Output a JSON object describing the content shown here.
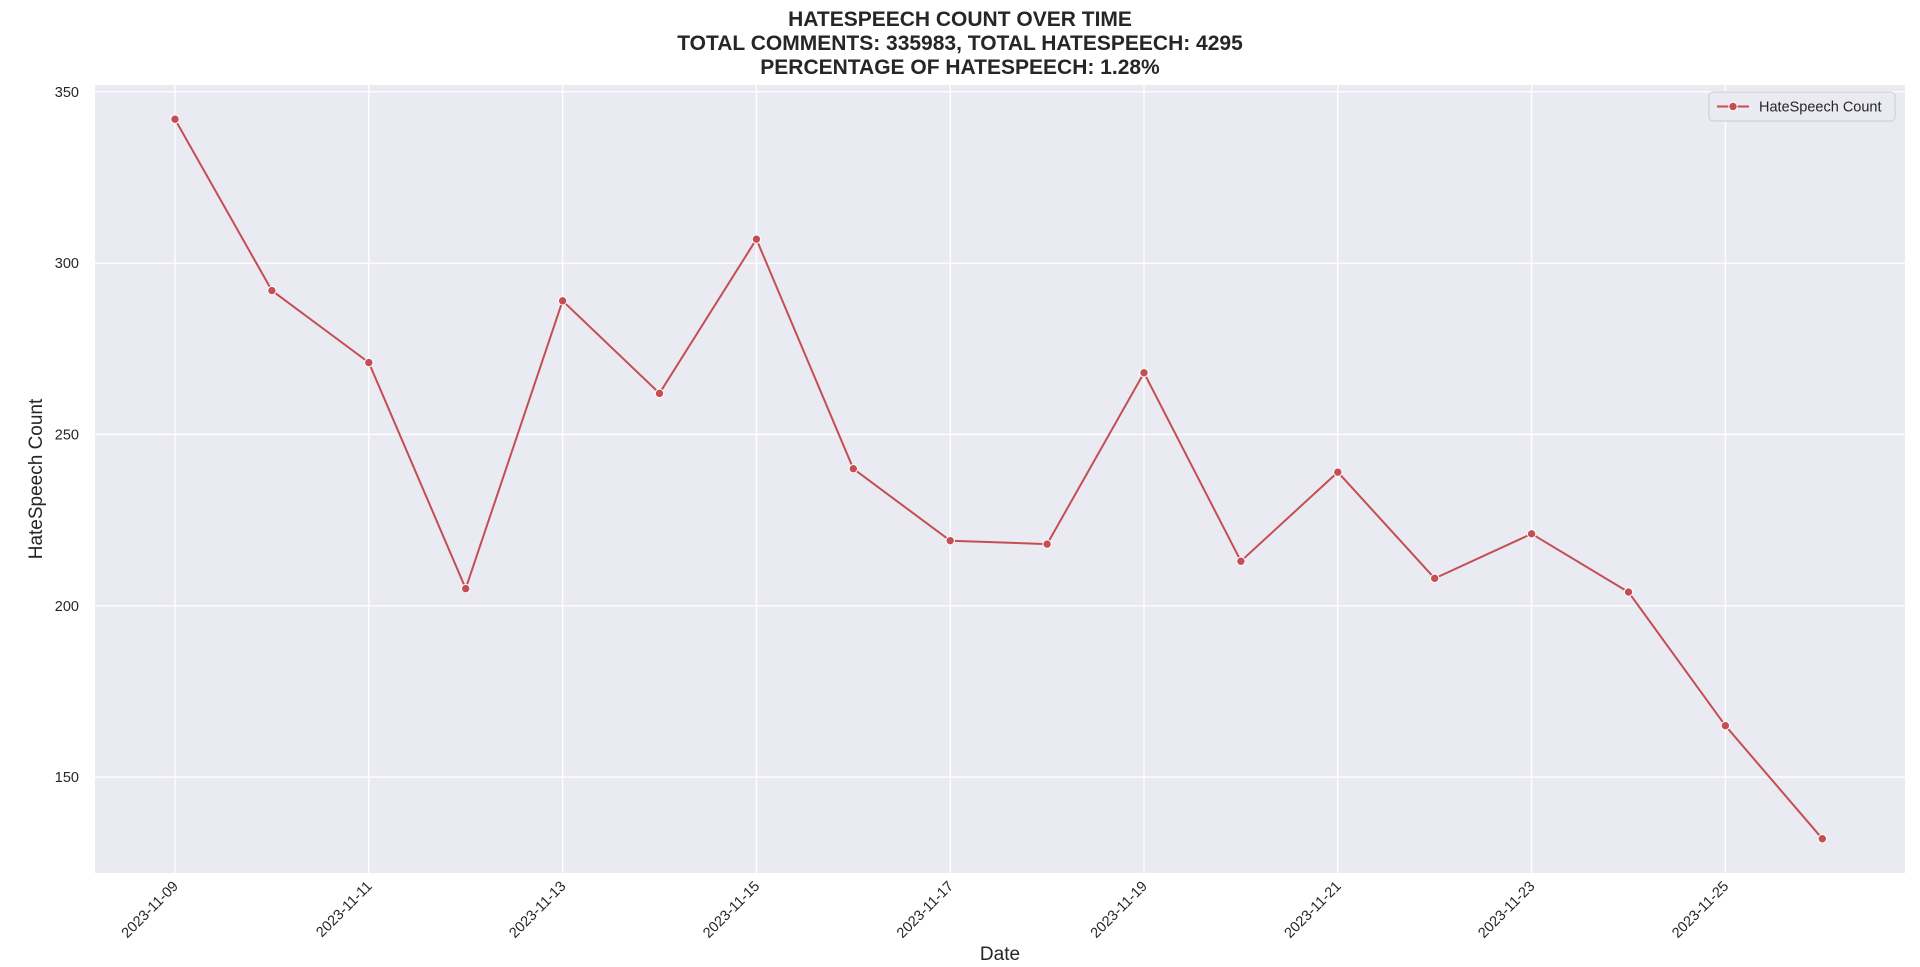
{
  "chart_data": {
    "type": "line",
    "title_lines": [
      "HATESPEECH COUNT OVER TIME",
      "TOTAL COMMENTS: 335983, TOTAL HATESPEECH: 4295",
      "PERCENTAGE OF HATESPEECH: 1.28%"
    ],
    "xlabel": "Date",
    "ylabel": "HateSpeech Count",
    "x": [
      "2023-11-09",
      "2023-11-10",
      "2023-11-11",
      "2023-11-12",
      "2023-11-13",
      "2023-11-14",
      "2023-11-15",
      "2023-11-16",
      "2023-11-17",
      "2023-11-18",
      "2023-11-19",
      "2023-11-20",
      "2023-11-21",
      "2023-11-22",
      "2023-11-23",
      "2023-11-24",
      "2023-11-25",
      "2023-11-26"
    ],
    "x_ticks": [
      "2023-11-09",
      "2023-11-11",
      "2023-11-13",
      "2023-11-15",
      "2023-11-17",
      "2023-11-19",
      "2023-11-21",
      "2023-11-23",
      "2023-11-25"
    ],
    "y_ticks": [
      150,
      200,
      250,
      300,
      350
    ],
    "ylim": [
      122,
      352
    ],
    "series": [
      {
        "name": "HateSpeech Count",
        "color": "#c44e52",
        "values": [
          342,
          292,
          271,
          205,
          289,
          262,
          307,
          240,
          219,
          218,
          268,
          213,
          239,
          208,
          221,
          204,
          165,
          132
        ]
      }
    ],
    "legend": {
      "position": "top-right"
    },
    "grid": true,
    "background_color": "#eaeaf2",
    "grid_color": "#ffffff"
  }
}
